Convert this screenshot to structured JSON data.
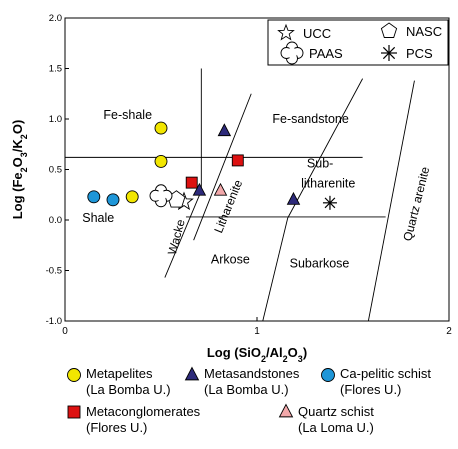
{
  "chart_data": {
    "type": "scatter",
    "xlabel": "Log (SiO2/Al2O3)",
    "ylabel": "Log (Fe2O3/K2O)",
    "xlim": [
      0,
      2
    ],
    "ylim": [
      -1,
      2
    ],
    "x_ticks": [
      0,
      1,
      2
    ],
    "y_ticks": [
      -1.0,
      -0.5,
      0.0,
      0.5,
      1.0,
      1.5,
      2.0
    ],
    "y_tick_labels": [
      "-1.0",
      "-0.5",
      "0.0",
      "0.5",
      "1.0",
      "1.5",
      "2.0"
    ],
    "grid": false,
    "fields": [
      "Fe-shale",
      "Fe-sandstone",
      "Shale",
      "Wacke",
      "Litharenite",
      "Sub-litharenite",
      "Arkose",
      "Subarkose",
      "Quartz arenite"
    ],
    "field_label_sub": [
      "Sub-",
      "litharenite"
    ],
    "reference_materials": [
      {
        "name": "UCC",
        "symbol": "star",
        "x": 0.62,
        "y": 0.18
      },
      {
        "name": "NASC",
        "symbol": "pentagon",
        "x": 0.58,
        "y": 0.2
      },
      {
        "name": "PAAS",
        "symbol": "cross",
        "x": 0.5,
        "y": 0.24
      },
      {
        "name": "PCS",
        "symbol": "asterisk",
        "x": 1.38,
        "y": 0.17
      }
    ],
    "series": [
      {
        "name": "Metapelites",
        "unit": "(La Bomba U.)",
        "color": "#f2e600",
        "marker": "circle",
        "points": [
          [
            0.5,
            0.91
          ],
          [
            0.5,
            0.58
          ],
          [
            0.35,
            0.23
          ]
        ]
      },
      {
        "name": "Metasandstones",
        "unit": "(La Bomba U.)",
        "color": "#2d2a7a",
        "marker": "triangle",
        "points": [
          [
            0.83,
            0.88
          ],
          [
            0.7,
            0.29
          ],
          [
            1.19,
            0.2
          ]
        ]
      },
      {
        "name": "Ca-pelitic schist",
        "unit": "(Flores U.)",
        "color": "#1e96d8",
        "marker": "circle",
        "points": [
          [
            0.15,
            0.23
          ],
          [
            0.25,
            0.2
          ]
        ]
      },
      {
        "name": "Metaconglomerates",
        "unit": "(Flores U.)",
        "color": "#dd1111",
        "marker": "square",
        "points": [
          [
            0.9,
            0.59
          ],
          [
            0.66,
            0.37
          ]
        ]
      },
      {
        "name": "Quartz schist",
        "unit": "(La Loma U.)",
        "color": "#f2a8aa",
        "marker": "triangle",
        "points": [
          [
            0.81,
            0.29
          ]
        ]
      }
    ]
  }
}
